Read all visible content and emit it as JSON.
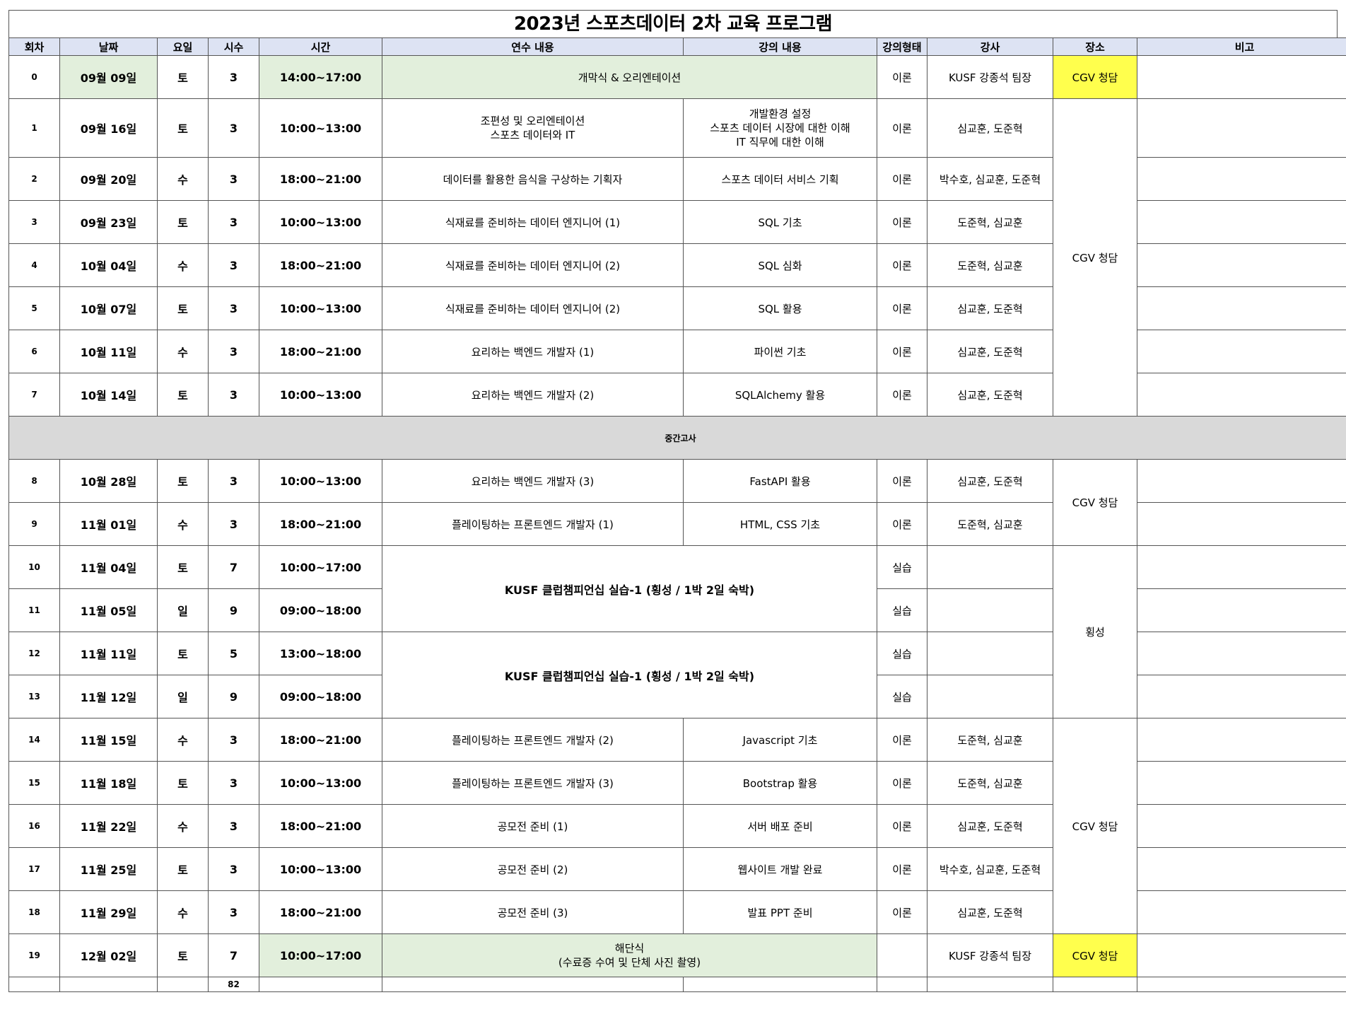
{
  "title": "2023년 스포츠데이터 2차 교육 프로그램",
  "headers": {
    "no": "회차",
    "date": "날짜",
    "day": "요일",
    "hours": "시수",
    "time": "시간",
    "training": "연수 내용",
    "lecture": "강의 내용",
    "type": "강의형태",
    "instructor": "강사",
    "place": "장소",
    "note": "비고"
  },
  "rows": [
    {
      "no": "0",
      "date": "09월 09일",
      "day": "토",
      "hours": "3",
      "time": "14:00~17:00",
      "training": "개막식 & 오리엔테이션",
      "type": "이론",
      "instructor": "KUSF 강종석 팀장",
      "place": "CGV 청담"
    },
    {
      "no": "1",
      "date": "09월 16일",
      "day": "토",
      "hours": "3",
      "time": "10:00~13:00",
      "training_lines": [
        "조편성 및 오리엔테이션",
        "스포츠 데이터와 IT"
      ],
      "lecture_lines": [
        "개발환경 설정",
        "스포츠 데이터 시장에 대한 이해",
        "IT 직무에 대한 이해"
      ],
      "type": "이론",
      "instructor": "심교훈, 도준혁",
      "place": "CGV 청담"
    },
    {
      "no": "2",
      "date": "09월 20일",
      "day": "수",
      "hours": "3",
      "time": "18:00~21:00",
      "training": "데이터를 활용한 음식을 구상하는 기획자",
      "lecture": "스포츠 데이터 서비스 기획",
      "type": "이론",
      "instructor": "박수호, 심교훈, 도준혁"
    },
    {
      "no": "3",
      "date": "09월 23일",
      "day": "토",
      "hours": "3",
      "time": "10:00~13:00",
      "training": "식재료를 준비하는 데이터 엔지니어 (1)",
      "lecture": "SQL 기초",
      "type": "이론",
      "instructor": "도준혁, 심교훈"
    },
    {
      "no": "4",
      "date": "10월 04일",
      "day": "수",
      "hours": "3",
      "time": "18:00~21:00",
      "training": "식재료를 준비하는 데이터 엔지니어 (2)",
      "lecture": "SQL 심화",
      "type": "이론",
      "instructor": "도준혁, 심교훈"
    },
    {
      "no": "5",
      "date": "10월 07일",
      "day": "토",
      "hours": "3",
      "time": "10:00~13:00",
      "training": "식재료를 준비하는 데이터 엔지니어 (2)",
      "lecture": "SQL 활용",
      "type": "이론",
      "instructor": "심교훈, 도준혁"
    },
    {
      "no": "6",
      "date": "10월 11일",
      "day": "수",
      "hours": "3",
      "time": "18:00~21:00",
      "training": "요리하는 백엔드 개발자 (1)",
      "lecture": "파이썬 기초",
      "type": "이론",
      "instructor": "심교훈, 도준혁"
    },
    {
      "no": "7",
      "date": "10월 14일",
      "day": "토",
      "hours": "3",
      "time": "10:00~13:00",
      "training": "요리하는 백엔드 개발자 (2)",
      "lecture": "SQLAlchemy 활용",
      "type": "이론",
      "instructor": "심교훈, 도준혁"
    },
    {
      "midterm": "중간고사"
    },
    {
      "no": "8",
      "date": "10월 28일",
      "day": "토",
      "hours": "3",
      "time": "10:00~13:00",
      "training": "요리하는 백엔드 개발자 (3)",
      "lecture": "FastAPI 활용",
      "type": "이론",
      "instructor": "심교훈, 도준혁",
      "place": "CGV 청담"
    },
    {
      "no": "9",
      "date": "11월 01일",
      "day": "수",
      "hours": "3",
      "time": "18:00~21:00",
      "training": "플레이팅하는 프론트엔드 개발자 (1)",
      "lecture": "HTML, CSS 기초",
      "type": "이론",
      "instructor": "도준혁, 심교훈"
    },
    {
      "no": "10",
      "date": "11월 04일",
      "day": "토",
      "hours": "7",
      "time": "10:00~17:00",
      "training": "KUSF 클럽챔피언십 실습-1 (횡성 / 1박 2일 숙박)",
      "type": "실습",
      "place": "횡성"
    },
    {
      "no": "11",
      "date": "11월 05일",
      "day": "일",
      "hours": "9",
      "time": "09:00~18:00",
      "type": "실습"
    },
    {
      "no": "12",
      "date": "11월 11일",
      "day": "토",
      "hours": "5",
      "time": "13:00~18:00",
      "training": "KUSF 클럽챔피언십 실습-1 (횡성 / 1박 2일 숙박)",
      "type": "실습"
    },
    {
      "no": "13",
      "date": "11월 12일",
      "day": "일",
      "hours": "9",
      "time": "09:00~18:00",
      "type": "실습"
    },
    {
      "no": "14",
      "date": "11월 15일",
      "day": "수",
      "hours": "3",
      "time": "18:00~21:00",
      "training": "플레이팅하는 프론트엔드 개발자 (2)",
      "lecture": "Javascript 기초",
      "type": "이론",
      "instructor": "도준혁, 심교훈",
      "place": "CGV 청담"
    },
    {
      "no": "15",
      "date": "11월 18일",
      "day": "토",
      "hours": "3",
      "time": "10:00~13:00",
      "training": "플레이팅하는 프론트엔드 개발자 (3)",
      "lecture": "Bootstrap 활용",
      "type": "이론",
      "instructor": "도준혁, 심교훈"
    },
    {
      "no": "16",
      "date": "11월 22일",
      "day": "수",
      "hours": "3",
      "time": "18:00~21:00",
      "training": "공모전 준비 (1)",
      "lecture": "서버 배포 준비",
      "type": "이론",
      "instructor": "심교훈, 도준혁"
    },
    {
      "no": "17",
      "date": "11월 25일",
      "day": "토",
      "hours": "3",
      "time": "10:00~13:00",
      "training": "공모전 준비 (2)",
      "lecture": "웹사이트 개발 완료",
      "type": "이론",
      "instructor": "박수호, 심교훈, 도준혁"
    },
    {
      "no": "18",
      "date": "11월 29일",
      "day": "수",
      "hours": "3",
      "time": "18:00~21:00",
      "training": "공모전 준비 (3)",
      "lecture": "발표 PPT 준비",
      "type": "이론",
      "instructor": "심교훈, 도준혁"
    },
    {
      "no": "19",
      "date": "12월 02일",
      "day": "토",
      "hours": "7",
      "time": "10:00~17:00",
      "training_lines": [
        "해단식",
        "(수료증 수여 및 단체 사진 촬영)"
      ],
      "type": "",
      "instructor": "KUSF 강종석 팀장",
      "place": "CGV 청담"
    }
  ],
  "total_hours": "82",
  "colors": {
    "header_bg": "#dde3f3",
    "highlight_green": "#e2efdc",
    "highlight_yellow": "#ffff4d",
    "midterm_bg": "#d9d9d9"
  }
}
